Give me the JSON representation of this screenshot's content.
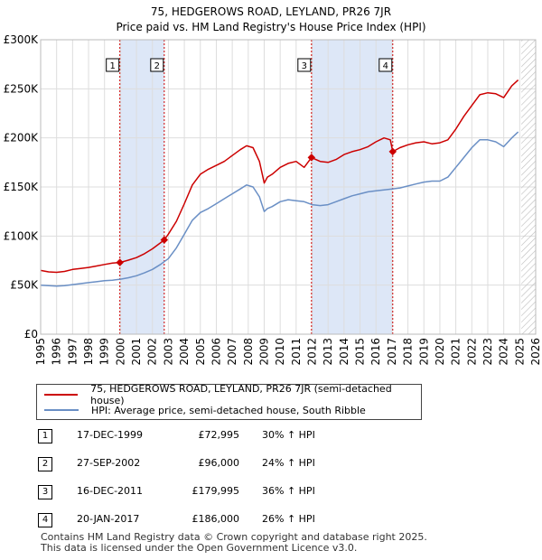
{
  "title": {
    "line1": "75, HEDGEROWS ROAD, LEYLAND, PR26 7JR",
    "line2": "Price paid vs. HM Land Registry's House Price Index (HPI)"
  },
  "legend": {
    "property_label": "75, HEDGEROWS ROAD, LEYLAND, PR26 7JR (semi-detached house)",
    "hpi_label": "HPI: Average price, semi-detached house, South Ribble"
  },
  "colors": {
    "property": "#cc0000",
    "hpi": "#6a8fc5",
    "shade": "#dde7f7",
    "grid": "#dddddd",
    "vline": "#cc0000"
  },
  "transactions": [
    {
      "num": "1",
      "date": "17-DEC-1999",
      "price": "£72,995",
      "hpi": "30% ↑ HPI"
    },
    {
      "num": "2",
      "date": "27-SEP-2002",
      "price": "£96,000",
      "hpi": "24% ↑ HPI"
    },
    {
      "num": "3",
      "date": "16-DEC-2011",
      "price": "£179,995",
      "hpi": "36% ↑ HPI"
    },
    {
      "num": "4",
      "date": "20-JAN-2017",
      "price": "£186,000",
      "hpi": "26% ↑ HPI"
    }
  ],
  "footer": {
    "line1": "Contains HM Land Registry data © Crown copyright and database right 2025.",
    "line2": "This data is licensed under the Open Government Licence v3.0."
  },
  "chart_data": {
    "type": "line",
    "title": "Price paid vs. HM Land Registry's House Price Index (HPI)",
    "xlim": [
      1995,
      2026
    ],
    "ylim": [
      0,
      300000
    ],
    "x_ticks": [
      1995,
      1996,
      1997,
      1998,
      1999,
      2000,
      2001,
      2002,
      2003,
      2004,
      2005,
      2006,
      2007,
      2008,
      2009,
      2010,
      2011,
      2012,
      2013,
      2014,
      2015,
      2016,
      2017,
      2018,
      2019,
      2020,
      2021,
      2022,
      2023,
      2024,
      2025,
      2026
    ],
    "y_ticks": [
      {
        "value": 0,
        "label": "£0"
      },
      {
        "value": 50000,
        "label": "£50K"
      },
      {
        "value": 100000,
        "label": "£100K"
      },
      {
        "value": 150000,
        "label": "£150K"
      },
      {
        "value": 200000,
        "label": "£200K"
      },
      {
        "value": 250000,
        "label": "£250K"
      },
      {
        "value": 300000,
        "label": "£300K"
      }
    ],
    "shaded_periods": [
      [
        1999.96,
        2002.74
      ],
      [
        2011.96,
        2017.05
      ]
    ],
    "future_hatch_from": 2025.1,
    "sales": [
      {
        "label": "1",
        "x": 1999.96,
        "y": 72995
      },
      {
        "label": "2",
        "x": 2002.74,
        "y": 96000
      },
      {
        "label": "3",
        "x": 2011.96,
        "y": 179995
      },
      {
        "label": "4",
        "x": 2017.05,
        "y": 186000
      }
    ],
    "series": [
      {
        "name": "75, HEDGEROWS ROAD, LEYLAND, PR26 7JR (semi-detached house)",
        "x": [
          1995,
          1995.5,
          1996,
          1996.5,
          1997,
          1997.5,
          1998,
          1998.5,
          1999,
          1999.5,
          1999.96,
          2000.5,
          2001,
          2001.5,
          2002,
          2002.5,
          2002.74,
          2003,
          2003.5,
          2004,
          2004.5,
          2005,
          2005.5,
          2006,
          2006.5,
          2007,
          2007.5,
          2007.9,
          2008.3,
          2008.7,
          2009,
          2009.2,
          2009.5,
          2010,
          2010.5,
          2011,
          2011.5,
          2011.96,
          2012.5,
          2013,
          2013.5,
          2014,
          2014.5,
          2015,
          2015.5,
          2016,
          2016.5,
          2016.9,
          2017.05,
          2017.5,
          2018,
          2018.5,
          2019,
          2019.5,
          2020,
          2020.5,
          2021,
          2021.5,
          2022,
          2022.5,
          2023,
          2023.5,
          2024,
          2024.5,
          2024.9
        ],
        "values": [
          65000,
          63500,
          63000,
          64000,
          66000,
          67000,
          68000,
          69500,
          71000,
          72500,
          72995,
          75500,
          78000,
          82000,
          87000,
          93000,
          96000,
          102000,
          115000,
          133000,
          152000,
          163000,
          168000,
          172000,
          176000,
          182000,
          188000,
          192000,
          190000,
          176000,
          154000,
          160000,
          163000,
          170000,
          174000,
          176000,
          170000,
          179995,
          176000,
          175000,
          178000,
          183000,
          186000,
          188000,
          191000,
          196000,
          200000,
          198000,
          186000,
          190000,
          193000,
          195000,
          196000,
          194000,
          195000,
          198000,
          209000,
          222000,
          233000,
          244000,
          246000,
          245000,
          241000,
          253000,
          259000
        ]
      },
      {
        "name": "HPI: Average price, semi-detached house, South Ribble",
        "x": [
          1995,
          1995.5,
          1996,
          1996.5,
          1997,
          1997.5,
          1998,
          1998.5,
          1999,
          1999.5,
          2000,
          2000.5,
          2001,
          2001.5,
          2002,
          2002.5,
          2003,
          2003.5,
          2004,
          2004.5,
          2005,
          2005.5,
          2006,
          2006.5,
          2007,
          2007.5,
          2007.9,
          2008.3,
          2008.7,
          2009,
          2009.2,
          2009.5,
          2010,
          2010.5,
          2011,
          2011.5,
          2012,
          2012.5,
          2013,
          2013.5,
          2014,
          2014.5,
          2015,
          2015.5,
          2016,
          2016.5,
          2017,
          2017.5,
          2018,
          2018.5,
          2019,
          2019.5,
          2020,
          2020.5,
          2021,
          2021.5,
          2022,
          2022.5,
          2023,
          2023.5,
          2024,
          2024.5,
          2024.9
        ],
        "values": [
          50000,
          49500,
          49000,
          49500,
          50500,
          51500,
          52500,
          53500,
          54500,
          55000,
          56000,
          57500,
          59500,
          62500,
          66000,
          71000,
          77000,
          88000,
          102000,
          116000,
          124000,
          128000,
          133000,
          138000,
          143000,
          148000,
          152000,
          150000,
          140000,
          125000,
          128000,
          130000,
          135000,
          137000,
          136000,
          135000,
          132000,
          131000,
          132000,
          135000,
          138000,
          141000,
          143000,
          145000,
          146000,
          147000,
          148000,
          149000,
          151000,
          153000,
          155000,
          156000,
          156000,
          160000,
          170000,
          180000,
          190000,
          198000,
          198000,
          196000,
          191000,
          200000,
          206000
        ]
      }
    ]
  }
}
